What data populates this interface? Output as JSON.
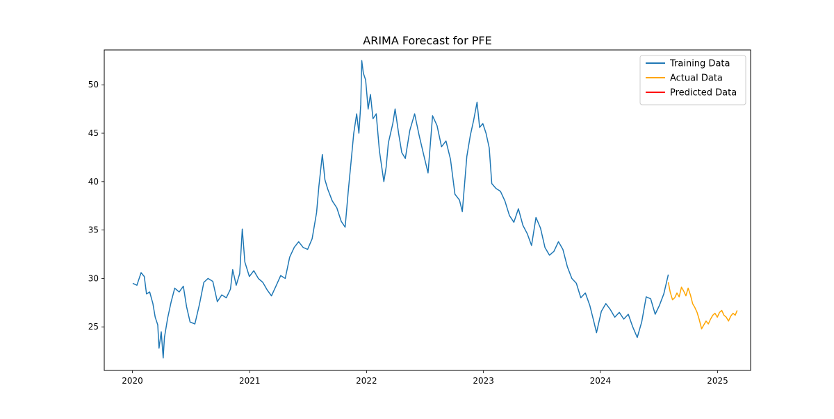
{
  "chart_data": {
    "type": "line",
    "title": "ARIMA Forecast for PFE",
    "xlabel": "",
    "ylabel": "",
    "x_axis": {
      "type": "date",
      "range": [
        "2019-10-05",
        "2025-04-14"
      ],
      "ticks": [
        "2020",
        "2021",
        "2022",
        "2023",
        "2024",
        "2025"
      ]
    },
    "y_axis": {
      "range": [
        20.5,
        53.6
      ],
      "ticks": [
        25,
        30,
        35,
        40,
        45,
        50
      ]
    },
    "grid": false,
    "legend": {
      "placement": "top-right"
    },
    "series": [
      {
        "name": "Training Data",
        "color": "#1f77b4",
        "points": [
          [
            "2020-01-02",
            29.5
          ],
          [
            "2020-01-15",
            29.3
          ],
          [
            "2020-01-28",
            30.6
          ],
          [
            "2020-02-07",
            30.2
          ],
          [
            "2020-02-14",
            28.4
          ],
          [
            "2020-02-24",
            28.6
          ],
          [
            "2020-03-05",
            27.4
          ],
          [
            "2020-03-12",
            26.0
          ],
          [
            "2020-03-20",
            25.2
          ],
          [
            "2020-03-24",
            22.8
          ],
          [
            "2020-03-31",
            24.5
          ],
          [
            "2020-04-06",
            21.8
          ],
          [
            "2020-04-10",
            23.9
          ],
          [
            "2020-04-20",
            25.9
          ],
          [
            "2020-05-01",
            27.6
          ],
          [
            "2020-05-12",
            29.0
          ],
          [
            "2020-05-26",
            28.6
          ],
          [
            "2020-06-08",
            29.2
          ],
          [
            "2020-06-18",
            27.1
          ],
          [
            "2020-06-29",
            25.5
          ],
          [
            "2020-07-14",
            25.3
          ],
          [
            "2020-07-28",
            27.3
          ],
          [
            "2020-08-11",
            29.6
          ],
          [
            "2020-08-24",
            30.0
          ],
          [
            "2020-09-08",
            29.7
          ],
          [
            "2020-09-22",
            27.6
          ],
          [
            "2020-10-06",
            28.3
          ],
          [
            "2020-10-20",
            28.0
          ],
          [
            "2020-11-02",
            28.9
          ],
          [
            "2020-11-09",
            30.9
          ],
          [
            "2020-11-20",
            29.3
          ],
          [
            "2020-12-01",
            30.5
          ],
          [
            "2020-12-09",
            35.1
          ],
          [
            "2020-12-17",
            31.7
          ],
          [
            "2020-12-31",
            30.2
          ],
          [
            "2021-01-14",
            30.8
          ],
          [
            "2021-01-28",
            30.0
          ],
          [
            "2021-02-11",
            29.6
          ],
          [
            "2021-02-25",
            28.8
          ],
          [
            "2021-03-10",
            28.2
          ],
          [
            "2021-03-24",
            29.2
          ],
          [
            "2021-04-08",
            30.3
          ],
          [
            "2021-04-22",
            30.0
          ],
          [
            "2021-05-06",
            32.2
          ],
          [
            "2021-05-20",
            33.2
          ],
          [
            "2021-06-03",
            33.8
          ],
          [
            "2021-06-17",
            33.2
          ],
          [
            "2021-07-01",
            33.0
          ],
          [
            "2021-07-15",
            34.1
          ],
          [
            "2021-07-29",
            36.8
          ],
          [
            "2021-08-05",
            39.5
          ],
          [
            "2021-08-16",
            42.8
          ],
          [
            "2021-08-24",
            40.2
          ],
          [
            "2021-09-02",
            39.2
          ],
          [
            "2021-09-16",
            38.0
          ],
          [
            "2021-09-30",
            37.3
          ],
          [
            "2021-10-14",
            35.9
          ],
          [
            "2021-10-26",
            35.3
          ],
          [
            "2021-11-05",
            39.1
          ],
          [
            "2021-11-12",
            41.5
          ],
          [
            "2021-11-22",
            45.0
          ],
          [
            "2021-12-01",
            47.0
          ],
          [
            "2021-12-08",
            45.0
          ],
          [
            "2021-12-14",
            48.0
          ],
          [
            "2021-12-17",
            52.5
          ],
          [
            "2021-12-22",
            51.2
          ],
          [
            "2021-12-29",
            50.5
          ],
          [
            "2022-01-06",
            47.5
          ],
          [
            "2022-01-13",
            49.0
          ],
          [
            "2022-01-21",
            46.5
          ],
          [
            "2022-01-31",
            47.0
          ],
          [
            "2022-02-10",
            43.2
          ],
          [
            "2022-02-24",
            40.0
          ],
          [
            "2022-03-03",
            41.5
          ],
          [
            "2022-03-10",
            44.0
          ],
          [
            "2022-03-24",
            46.0
          ],
          [
            "2022-03-31",
            47.5
          ],
          [
            "2022-04-11",
            45.0
          ],
          [
            "2022-04-21",
            43.0
          ],
          [
            "2022-05-02",
            42.4
          ],
          [
            "2022-05-16",
            45.3
          ],
          [
            "2022-05-31",
            47.0
          ],
          [
            "2022-06-14",
            44.8
          ],
          [
            "2022-06-28",
            42.8
          ],
          [
            "2022-07-12",
            40.9
          ],
          [
            "2022-07-26",
            46.8
          ],
          [
            "2022-08-09",
            45.8
          ],
          [
            "2022-08-23",
            43.6
          ],
          [
            "2022-09-06",
            44.2
          ],
          [
            "2022-09-20",
            42.3
          ],
          [
            "2022-10-04",
            38.7
          ],
          [
            "2022-10-18",
            38.1
          ],
          [
            "2022-10-27",
            36.9
          ],
          [
            "2022-11-10",
            42.6
          ],
          [
            "2022-11-21",
            44.8
          ],
          [
            "2022-12-01",
            46.3
          ],
          [
            "2022-12-12",
            48.2
          ],
          [
            "2022-12-20",
            45.6
          ],
          [
            "2022-12-30",
            46.0
          ],
          [
            "2023-01-09",
            45.0
          ],
          [
            "2023-01-19",
            43.5
          ],
          [
            "2023-01-27",
            39.8
          ],
          [
            "2023-02-09",
            39.3
          ],
          [
            "2023-02-23",
            39.0
          ],
          [
            "2023-03-09",
            38.0
          ],
          [
            "2023-03-23",
            36.5
          ],
          [
            "2023-04-06",
            35.8
          ],
          [
            "2023-04-20",
            37.2
          ],
          [
            "2023-05-04",
            35.5
          ],
          [
            "2023-05-18",
            34.6
          ],
          [
            "2023-05-31",
            33.4
          ],
          [
            "2023-06-14",
            36.3
          ],
          [
            "2023-06-28",
            35.2
          ],
          [
            "2023-07-12",
            33.2
          ],
          [
            "2023-07-26",
            32.4
          ],
          [
            "2023-08-09",
            32.8
          ],
          [
            "2023-08-23",
            33.8
          ],
          [
            "2023-09-06",
            33.0
          ],
          [
            "2023-09-20",
            31.2
          ],
          [
            "2023-10-04",
            30.0
          ],
          [
            "2023-10-18",
            29.5
          ],
          [
            "2023-11-01",
            28.0
          ],
          [
            "2023-11-15",
            28.5
          ],
          [
            "2023-11-29",
            27.2
          ],
          [
            "2023-12-12",
            25.5
          ],
          [
            "2023-12-20",
            24.4
          ],
          [
            "2024-01-04",
            26.6
          ],
          [
            "2024-01-18",
            27.4
          ],
          [
            "2024-02-01",
            26.8
          ],
          [
            "2024-02-15",
            26.0
          ],
          [
            "2024-02-29",
            26.5
          ],
          [
            "2024-03-14",
            25.8
          ],
          [
            "2024-03-28",
            26.3
          ],
          [
            "2024-04-11",
            25.0
          ],
          [
            "2024-04-25",
            23.9
          ],
          [
            "2024-05-09",
            25.5
          ],
          [
            "2024-05-23",
            28.1
          ],
          [
            "2024-06-06",
            27.9
          ],
          [
            "2024-06-20",
            26.3
          ],
          [
            "2024-07-03",
            27.2
          ],
          [
            "2024-07-17",
            28.4
          ],
          [
            "2024-07-31",
            30.4
          ]
        ]
      },
      {
        "name": "Actual Data",
        "color": "#ffa500",
        "points": [
          [
            "2024-07-31",
            29.6
          ],
          [
            "2024-08-06",
            28.6
          ],
          [
            "2024-08-13",
            27.8
          ],
          [
            "2024-08-20",
            28.0
          ],
          [
            "2024-08-27",
            28.5
          ],
          [
            "2024-09-03",
            28.1
          ],
          [
            "2024-09-10",
            29.1
          ],
          [
            "2024-09-17",
            28.7
          ],
          [
            "2024-09-24",
            28.2
          ],
          [
            "2024-10-01",
            29.0
          ],
          [
            "2024-10-08",
            28.3
          ],
          [
            "2024-10-15",
            27.4
          ],
          [
            "2024-10-22",
            27.0
          ],
          [
            "2024-10-29",
            26.5
          ],
          [
            "2024-11-05",
            25.7
          ],
          [
            "2024-11-12",
            24.8
          ],
          [
            "2024-11-19",
            25.2
          ],
          [
            "2024-11-26",
            25.6
          ],
          [
            "2024-12-03",
            25.3
          ],
          [
            "2024-12-10",
            25.8
          ],
          [
            "2024-12-17",
            26.2
          ],
          [
            "2024-12-24",
            26.4
          ],
          [
            "2024-12-31",
            26.0
          ],
          [
            "2025-01-07",
            26.5
          ],
          [
            "2025-01-14",
            26.7
          ],
          [
            "2025-01-21",
            26.2
          ],
          [
            "2025-01-28",
            26.0
          ],
          [
            "2025-02-04",
            25.6
          ],
          [
            "2025-02-11",
            26.1
          ],
          [
            "2025-02-18",
            26.4
          ],
          [
            "2025-02-25",
            26.2
          ],
          [
            "2025-03-03",
            26.7
          ]
        ]
      },
      {
        "name": "Predicted Data",
        "color": "#ff0000",
        "points": []
      }
    ]
  }
}
